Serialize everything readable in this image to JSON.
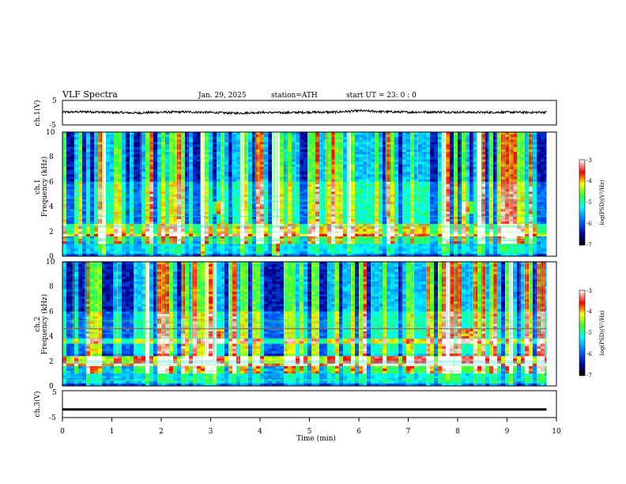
{
  "header": {
    "title": "VLF  Spectra",
    "date": "Jan. 29, 2025",
    "station": "station=ATH",
    "start_ut": "start  UT  =   23: 0  : 0"
  },
  "chart_data": [
    {
      "type": "line",
      "panel": "ch1_waveform",
      "ylabel": "ch.1(V)",
      "ylim": [
        -5,
        5
      ],
      "yticks": [
        "5",
        "-5"
      ],
      "x": [
        0,
        0.5,
        1,
        1.5,
        2,
        2.5,
        3,
        3.5,
        4,
        4.5,
        5,
        5.5,
        6,
        6.5,
        7,
        7.5,
        8,
        8.5,
        9,
        9.5,
        9.8
      ],
      "y": [
        0.2,
        0.4,
        0.1,
        -0.1,
        0.2,
        0.3,
        0.1,
        -0.2,
        0.1,
        0.0,
        0.2,
        0.2,
        0.8,
        0.4,
        0.2,
        0.3,
        0.2,
        0.1,
        0.2,
        0.1,
        0.2
      ],
      "color": "#000000"
    },
    {
      "type": "heatmap",
      "panel": "ch1_spectrogram",
      "ylabel": "ch.1\nFrequency  (kHz)",
      "ylim": [
        0,
        10
      ],
      "yticks": [
        "0",
        "2",
        "4",
        "6",
        "8",
        "10"
      ],
      "colorbar": {
        "label": "log(PSD)(V²/Hz)",
        "range": [
          -7,
          -3
        ],
        "ticks": [
          "-3",
          "-4",
          "-5",
          "-6",
          "-7"
        ]
      },
      "features": {
        "strong_band_khz": [
          1.9,
          2.2
        ],
        "noise_floor_band_khz": [
          0,
          1.5
        ],
        "transient_burst_times_min": [
          3.1,
          8.2
        ],
        "transient_burst_freq_khz": 3.9
      }
    },
    {
      "type": "heatmap",
      "panel": "ch2_spectrogram",
      "ylabel": "ch.2\nFrequency  (kHz)",
      "ylim": [
        0,
        10
      ],
      "yticks": [
        "0",
        "2",
        "4",
        "6",
        "8",
        "10"
      ],
      "colorbar": {
        "label": "log(PSD)(V²/Hz)",
        "range": [
          -7,
          -3
        ],
        "ticks": [
          "-3",
          "-4",
          "-5",
          "-6",
          "-7"
        ]
      },
      "features": {
        "strong_band_khz": [
          1.9,
          2.1
        ],
        "secondary_band_khz": [
          3.4,
          3.7
        ],
        "line_khz": [
          4.6
        ],
        "transient_burst_times_min": [
          3.1,
          8.2
        ],
        "transient_burst_freq_khz": 4.0
      }
    },
    {
      "type": "line",
      "panel": "ch3_waveform",
      "ylabel": "ch.3(V)",
      "ylim": [
        -5,
        5
      ],
      "yticks": [
        "5",
        "-5"
      ],
      "x": [
        0,
        9.8
      ],
      "y": [
        -2,
        -2
      ],
      "color": "#000000"
    }
  ],
  "xaxis": {
    "label": "Time  (min)",
    "range": [
      0,
      10
    ],
    "ticks": [
      "0",
      "1",
      "2",
      "3",
      "4",
      "5",
      "6",
      "7",
      "8",
      "9",
      "10"
    ]
  }
}
